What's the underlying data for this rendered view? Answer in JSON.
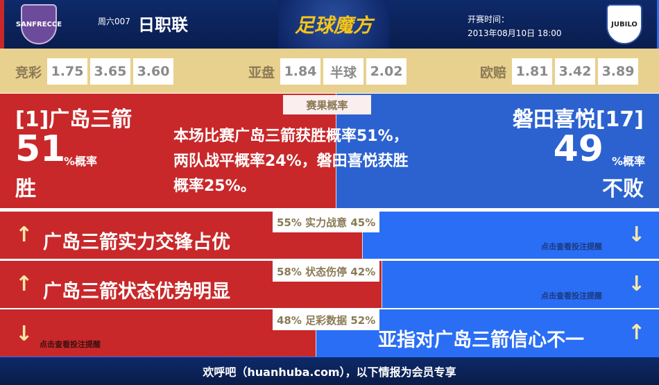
{
  "header": {
    "home_crest": "SANFRECCE",
    "away_crest": "JUBILO",
    "match_no": "周六007",
    "league": "日职联",
    "logo": "足球魔方",
    "kickoff_label": "开赛时间：",
    "kickoff_time": "2013年08月10日 18:00"
  },
  "odds": [
    {
      "label": "竞彩",
      "values": [
        "1.75",
        "3.65",
        "3.60"
      ]
    },
    {
      "label": "亚盘",
      "values": [
        "1.84",
        "半球",
        "2.02"
      ]
    },
    {
      "label": "欧赔",
      "values": [
        "1.81",
        "3.42",
        "3.89"
      ]
    }
  ],
  "result": {
    "tag": "赛果概率",
    "home_pct": 51,
    "home_name": "[1]广岛三箭",
    "home_num": "51",
    "home_unit": "%概率",
    "home_outcome": "胜",
    "away_name": "磐田喜悦[17]",
    "away_num": "49",
    "away_unit": "%概率",
    "away_outcome": "不败",
    "summary": [
      "本场比赛广岛三箭获胜概率51%，",
      "两队战平概率24%，磐田喜悦获胜",
      "概率25%。"
    ]
  },
  "rows": [
    {
      "home_pct": 55,
      "label": "55% 实力战意 45%",
      "text": "广岛三箭实力交锋占优",
      "hint": "点击查看投注提醒"
    },
    {
      "home_pct": 58,
      "label": "58% 状态伤停 42%",
      "text": "广岛三箭状态优势明显",
      "hint": "点击查看投注提醒"
    },
    {
      "home_pct": 48,
      "label": "48% 足彩数据 52%",
      "text": "亚指对广岛三箭信心不一",
      "hint": "点击查看投注提醒"
    }
  ],
  "icons": {
    "up": "↑",
    "down": "↓"
  },
  "footer": "欢呼吧（huanhuba.com），以下情报为会员专享",
  "colors": {
    "home": "#c8282a",
    "away": "#2a6ef5",
    "odds_bg": "#e8d08e",
    "header": "#0e2a6a"
  }
}
